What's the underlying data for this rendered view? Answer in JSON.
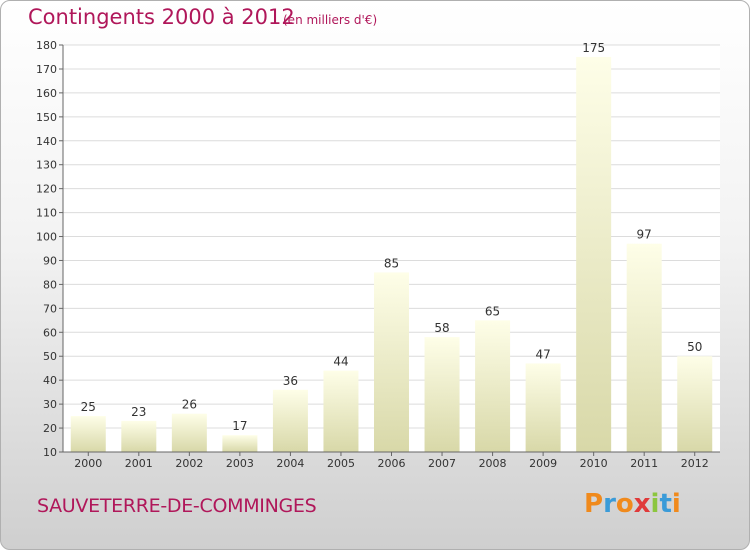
{
  "header": {
    "title": "Contingents 2000 à 2012",
    "subtitle": "(en milliers d'€)"
  },
  "footer": {
    "commune": "SAUVETERRE-DE-COMMINGES",
    "logo_letters": [
      "P",
      "r",
      "o",
      "x",
      "i",
      "t",
      "i"
    ],
    "logo_colors": [
      "#f08a1c",
      "#3a9bd8",
      "#f08a1c",
      "#e03a3a",
      "#8cc63f",
      "#3a9bd8",
      "#f08a1c"
    ]
  },
  "colors": {
    "title": "#b0175a",
    "bar_light": "#fefee8",
    "bar_dark": "#d8d8a8",
    "grid": "#dcdcdc"
  },
  "chart_data": {
    "type": "bar",
    "title": "Contingents 2000 à 2012",
    "subtitle": "(en milliers d'€)",
    "categories": [
      "2000",
      "2001",
      "2002",
      "2003",
      "2004",
      "2005",
      "2006",
      "2007",
      "2008",
      "2009",
      "2010",
      "2011",
      "2012"
    ],
    "values": [
      25,
      23,
      26,
      17,
      36,
      44,
      85,
      58,
      65,
      47,
      175,
      97,
      50
    ],
    "ylim": [
      10,
      180
    ],
    "yticks": [
      10,
      20,
      30,
      40,
      50,
      60,
      70,
      80,
      90,
      100,
      110,
      120,
      130,
      140,
      150,
      160,
      170,
      180
    ],
    "grid": true,
    "legend": "none"
  }
}
